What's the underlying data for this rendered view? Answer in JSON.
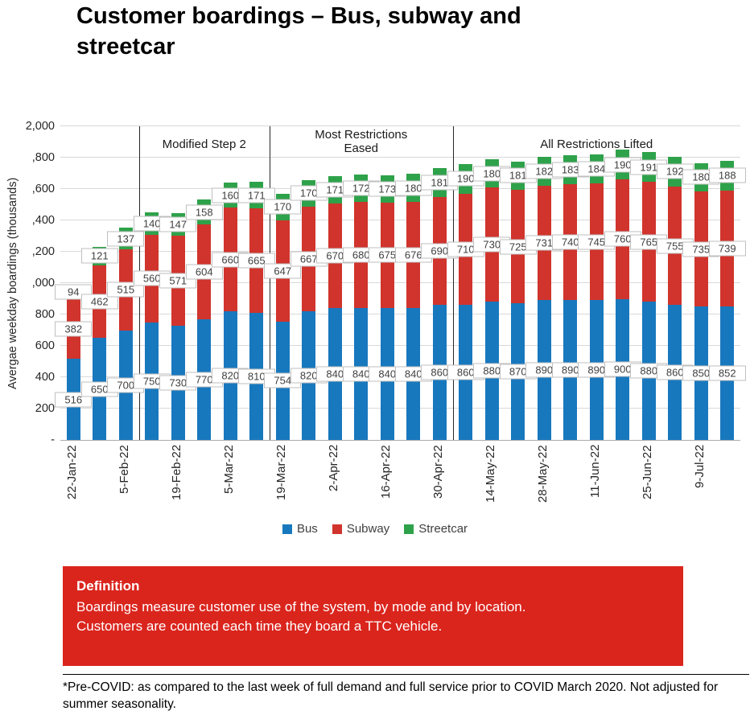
{
  "page_title": "Customer boardings – Bus, subway and streetcar",
  "chart_data": {
    "type": "bar",
    "stacked": true,
    "title": "Customer boardings – Bus, subway and streetcar",
    "xlabel": "",
    "ylabel": "Avergae weekday boardings (thousands)",
    "ylim": [
      0,
      2000
    ],
    "grid": true,
    "legend_position": "bottom",
    "yticks": [
      {
        "value": 2000,
        "label": "2,000"
      },
      {
        "value": 1800,
        "label": ",800"
      },
      {
        "value": 1600,
        "label": ",600"
      },
      {
        "value": 1400,
        "label": ",400"
      },
      {
        "value": 1200,
        "label": ",200"
      },
      {
        "value": 1000,
        "label": ",000"
      },
      {
        "value": 800,
        "label": "800"
      },
      {
        "value": 600,
        "label": "600"
      },
      {
        "value": 400,
        "label": "400"
      },
      {
        "value": 200,
        "label": "200"
      },
      {
        "value": 0,
        "label": "-"
      }
    ],
    "bar_count": 26,
    "xtick_labels": [
      "22-Jan-22",
      "5-Feb-22",
      "19-Feb-22",
      "5-Mar-22",
      "19-Mar-22",
      "2-Apr-22",
      "16-Apr-22",
      "30-Apr-22",
      "14-May-22",
      "28-May-22",
      "11-Jun-22",
      "25-Jun-22",
      "9-Jul-22"
    ],
    "xtick_every": 2,
    "series": [
      {
        "name": "Bus",
        "color": "#1878BE",
        "values": [
          516,
          650,
          700,
          750,
          730,
          770,
          820,
          810,
          754,
          820,
          840,
          840,
          840,
          840,
          860,
          860,
          880,
          870,
          890,
          890,
          890,
          900,
          880,
          860,
          850,
          852
        ]
      },
      {
        "name": "Subway",
        "color": "#D0342C",
        "values": [
          382,
          462,
          515,
          560,
          571,
          604,
          660,
          665,
          647,
          667,
          670,
          680,
          675,
          676,
          690,
          710,
          730,
          725,
          731,
          740,
          745,
          760,
          765,
          755,
          735,
          739
        ]
      },
      {
        "name": "Streetcar",
        "color": "#2EA24A",
        "values": [
          94,
          121,
          137,
          140,
          147,
          158,
          160,
          171,
          170,
          170,
          171,
          172,
          173,
          180,
          181,
          190,
          180,
          181,
          182,
          183,
          184,
          190,
          191,
          192,
          180,
          188
        ]
      }
    ],
    "phase_dividers_after_bar": [
      3,
      8,
      15
    ],
    "phase_regions": [
      {
        "label": "Modified Step 2",
        "from_bar": 3,
        "to_bar": 8,
        "two_line": false
      },
      {
        "label": "Most Restrictions Eased",
        "from_bar": 8,
        "to_bar": 15,
        "two_line": true
      },
      {
        "label": "All Restrictions Lifted",
        "from_bar": 15,
        "to_bar": 26,
        "two_line": false
      }
    ]
  },
  "legend": {
    "items": [
      {
        "label": "Bus",
        "color": "#1878BE"
      },
      {
        "label": "Subway",
        "color": "#D0342C"
      },
      {
        "label": "Streetcar",
        "color": "#2EA24A"
      }
    ]
  },
  "definition": {
    "heading": "Definition",
    "line1": "Boardings measure customer use of the system, by mode and by location.",
    "line2": "Customers are counted each time they board a TTC vehicle.",
    "bg_color": "#DA251D",
    "text_color": "#FFFFFF"
  },
  "footnote": {
    "text": "*Pre-COVID: as compared to the last week of full demand and full service prior to COVID March 2020. Not adjusted for summer seasonality."
  }
}
